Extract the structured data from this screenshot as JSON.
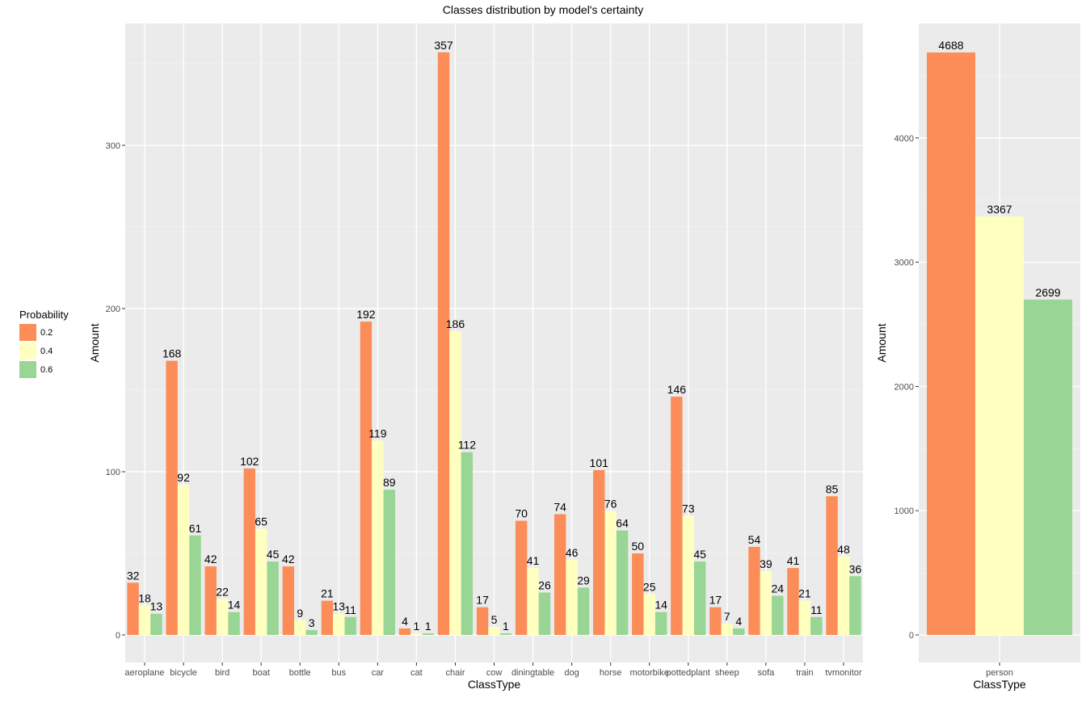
{
  "page": {
    "title": "Classes distribution by model's certainty"
  },
  "legend": {
    "title": "Probability",
    "placement": "left",
    "items": [
      {
        "label": "0.2",
        "color": "#fc8d59"
      },
      {
        "label": "0.4",
        "color": "#ffffbf"
      },
      {
        "label": "0.6",
        "color": "#99d594"
      }
    ]
  },
  "chart_data": [
    {
      "type": "bar",
      "title": "Classes distribution by model's certainty",
      "xlabel": "ClassType",
      "ylabel": "Amount",
      "ylim": [
        0,
        370
      ],
      "yticks": [
        0,
        100,
        200,
        300
      ],
      "grid": true,
      "categories": [
        "aeroplane",
        "bicycle",
        "bird",
        "boat",
        "bottle",
        "bus",
        "car",
        "cat",
        "chair",
        "cow",
        "diningtable",
        "dog",
        "horse",
        "motorbike",
        "pottedplant",
        "sheep",
        "sofa",
        "train",
        "tvmonitor"
      ],
      "series": [
        {
          "name": "0.2",
          "color": "#fc8d59",
          "values": [
            32,
            168,
            42,
            102,
            42,
            21,
            192,
            4,
            357,
            17,
            70,
            74,
            101,
            50,
            146,
            17,
            54,
            41,
            85
          ]
        },
        {
          "name": "0.4",
          "color": "#ffffbf",
          "values": [
            18,
            92,
            22,
            65,
            9,
            13,
            119,
            1,
            186,
            5,
            41,
            46,
            76,
            25,
            73,
            7,
            39,
            21,
            48
          ]
        },
        {
          "name": "0.6",
          "color": "#99d594",
          "values": [
            13,
            61,
            14,
            45,
            3,
            11,
            89,
            1,
            112,
            1,
            26,
            29,
            64,
            14,
            45,
            4,
            24,
            11,
            36
          ]
        }
      ]
    },
    {
      "type": "bar",
      "title": "",
      "xlabel": "ClassType",
      "ylabel": "Amount",
      "ylim": [
        0,
        4800
      ],
      "yticks": [
        0,
        1000,
        2000,
        3000,
        4000
      ],
      "grid": true,
      "categories": [
        "person"
      ],
      "series": [
        {
          "name": "0.2",
          "color": "#fc8d59",
          "values": [
            4688
          ]
        },
        {
          "name": "0.4",
          "color": "#ffffbf",
          "values": [
            3367
          ]
        },
        {
          "name": "0.6",
          "color": "#99d594",
          "values": [
            2699
          ]
        }
      ]
    }
  ]
}
